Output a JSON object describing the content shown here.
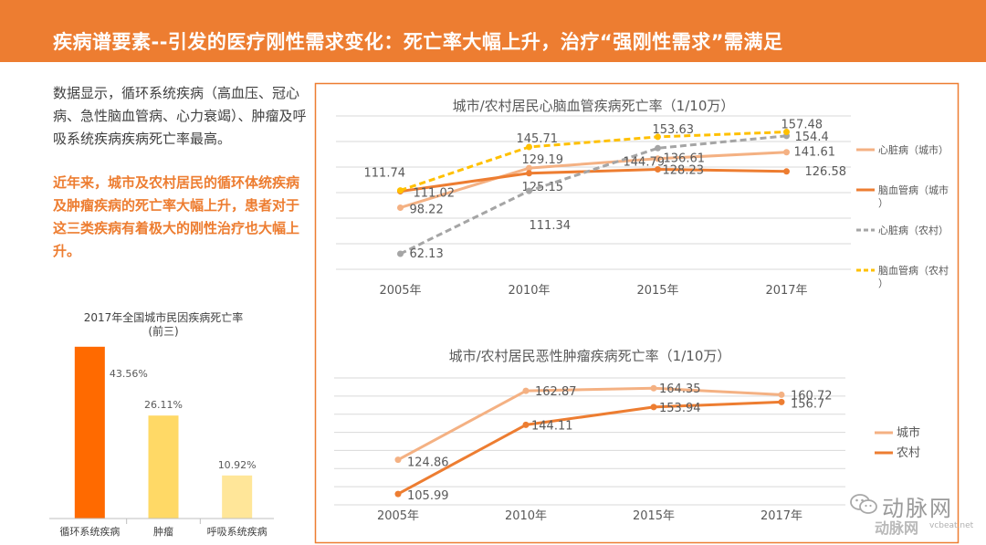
{
  "header": {
    "title": "疾病谱要素--引发的医疗刚性需求变化：死亡率大幅上升，治疗“强刚性需求”需满足"
  },
  "intro": "数据显示，循环系统疾病（高血压、冠心病、急性脑血管病、心力衰竭）、肿瘤及呼吸系统疾病疾病死亡率最高。",
  "highlight": "近年来，城市及农村居民的循环体统疾病及肿瘤疾病的死亡率大幅上升，患者对于这三类疾病有着极大的刚性治疗也大幅上升。",
  "watermark": {
    "name": "动脉网",
    "logo": "动脉网",
    "url": "vcbeat.net"
  },
  "colors": {
    "accent": "#ED7D31",
    "city_light": "#F4B183",
    "gray": "#A5A5A5",
    "yellow": "#FFC000"
  },
  "chart_data": [
    {
      "type": "bar",
      "title": "2017年全国城市民因疾病死亡率",
      "subtitle": "(前三)",
      "categories": [
        "循环系统疾病",
        "肿瘤",
        "呼吸系统疾病"
      ],
      "values": [
        43.56,
        26.11,
        10.92
      ],
      "value_labels": [
        "43.56%",
        "26.11%",
        "10.92%"
      ],
      "colors": [
        "#FF6A00",
        "#FFD966",
        "#FFE699"
      ],
      "ylim": [
        0,
        50
      ]
    },
    {
      "type": "line",
      "title": "城市/农村居民心脑血管疾病死亡率（1/10万）",
      "categories": [
        "2005年",
        "2010年",
        "2015年",
        "2017年"
      ],
      "ylim": [
        50,
        170
      ],
      "grid": true,
      "legend": "right",
      "series": [
        {
          "name": "心脏病（城市）",
          "values": [
            98.22,
            129.19,
            136.61,
            141.61
          ],
          "color": "#F4B183",
          "dashed": false
        },
        {
          "name": "脑血管病（城市）",
          "values": [
            111.02,
            125.15,
            128.23,
            126.58
          ],
          "color": "#ED7D31",
          "dashed": false
        },
        {
          "name": "心脏病（农村）",
          "values": [
            62.13,
            111.34,
            144.79,
            154.4
          ],
          "color": "#A5A5A5",
          "dashed": true
        },
        {
          "name": "脑血管病（农村）",
          "values": [
            111.74,
            145.71,
            153.63,
            157.48
          ],
          "color": "#FFC000",
          "dashed": true
        }
      ]
    },
    {
      "type": "line",
      "title": "城市/农村居民恶性肿瘤疾病死亡率（1/10万）",
      "categories": [
        "2005年",
        "2010年",
        "2015年",
        "2017年"
      ],
      "ylim": [
        100,
        170
      ],
      "grid": true,
      "legend": "right",
      "series": [
        {
          "name": "城市",
          "values": [
            124.86,
            162.87,
            164.35,
            160.72
          ],
          "color": "#F4B183",
          "dashed": false
        },
        {
          "name": "农村",
          "values": [
            105.99,
            144.11,
            153.94,
            156.7
          ],
          "color": "#ED7D31",
          "dashed": false
        }
      ]
    }
  ]
}
